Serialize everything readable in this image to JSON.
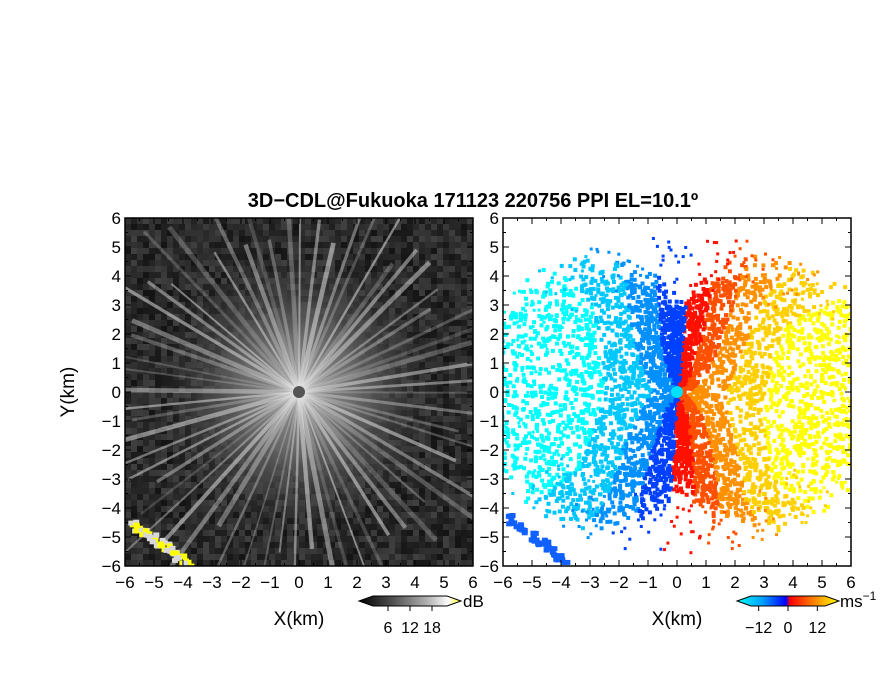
{
  "figure": {
    "title": "3D−CDL@Fukuoka 171123 220756 PPI EL=10.1º"
  },
  "chart_data": [
    {
      "type": "heatmap",
      "panel": "left",
      "quantity": "reflectivity",
      "xlabel": "X(km)",
      "ylabel": "Y(km)",
      "xlim": [
        -6,
        6
      ],
      "ylim": [
        -6,
        6
      ],
      "xticks": [
        "−6",
        "−5",
        "−4",
        "−3",
        "−2",
        "−1",
        "0",
        "1",
        "2",
        "3",
        "4",
        "5",
        "6"
      ],
      "yticks": [
        "−6",
        "−5",
        "−4",
        "−3",
        "−2",
        "−1",
        "0",
        "1",
        "2",
        "3",
        "4",
        "5",
        "6"
      ],
      "colorbar": {
        "unit": "dB",
        "ticks": [
          "6",
          "12",
          "18"
        ],
        "tick_values": [
          6,
          12,
          18
        ],
        "range": [
          0,
          24
        ],
        "colors": [
          "#000000",
          "#555555",
          "#aaaaaa",
          "#ffffff",
          "#ffff00"
        ]
      },
      "features": {
        "radial_spokes": true,
        "center": [
          0,
          0
        ],
        "strong_echo_corner": "bottom-left"
      }
    },
    {
      "type": "heatmap",
      "panel": "right",
      "quantity": "radial velocity",
      "xlabel": "X(km)",
      "xlim": [
        -6,
        6
      ],
      "ylim": [
        -6,
        6
      ],
      "xticks": [
        "−6",
        "−5",
        "−4",
        "−3",
        "−2",
        "−1",
        "0",
        "1",
        "2",
        "3",
        "4",
        "5",
        "6"
      ],
      "yticks": [
        "−6",
        "−5",
        "−4",
        "−3",
        "−2",
        "−1",
        "0",
        "1",
        "2",
        "3",
        "4",
        "5",
        "6"
      ],
      "colorbar": {
        "unit": "ms",
        "unit_exponent": "−1",
        "ticks": [
          "−12",
          "0",
          "12"
        ],
        "tick_values": [
          -12,
          0,
          12
        ],
        "range": [
          -18,
          18
        ],
        "colors": [
          "#00ffff",
          "#00a0ff",
          "#0000ff",
          "#ff0000",
          "#ff8000",
          "#ffff00"
        ]
      },
      "features": {
        "negative_side": "left",
        "positive_side": "right",
        "center": [
          0,
          0
        ]
      }
    }
  ]
}
